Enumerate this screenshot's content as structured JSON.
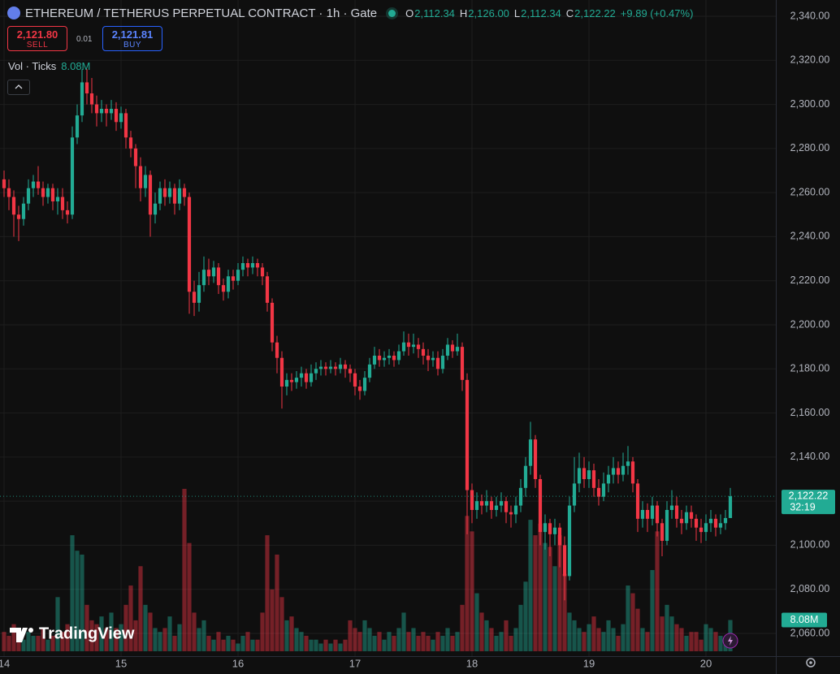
{
  "chart_data": {
    "type": "candlestick",
    "title": "ETHEREUM / TETHERUS PERPETUAL CONTRACT · 1h · Gate",
    "ohlc_legend": [
      {
        "key": "O",
        "text": "2,112.34"
      },
      {
        "key": "H",
        "text": "2,126.00"
      },
      {
        "key": "L",
        "text": "2,112.34"
      },
      {
        "key": "C",
        "text": "2,122.22"
      }
    ],
    "change": "+9.89 (+0.47%)",
    "sell": {
      "price": "2,121.80",
      "label": "SELL"
    },
    "spread": "0.01",
    "buy": {
      "price": "2,121.81",
      "label": "BUY"
    },
    "volume_title": "Vol · Ticks",
    "volume_label": "8.08M",
    "last_price_label": "2,122.22",
    "countdown": "32:19",
    "watermark": "TradingView",
    "up_color": "#22ab94",
    "down_color": "#f23645",
    "grid": true,
    "xlim": [
      -0.8333,
      158.3333
    ],
    "xticks": [
      {
        "value": 0,
        "label": "14"
      },
      {
        "value": 24,
        "label": "15"
      },
      {
        "value": 48,
        "label": "16"
      },
      {
        "value": 72,
        "label": "17"
      },
      {
        "value": 96,
        "label": "18"
      },
      {
        "value": 120,
        "label": "19"
      },
      {
        "value": 144,
        "label": "20"
      }
    ],
    "ylim": [
      2049.68,
      2347.37
    ],
    "yticks": [
      {
        "value": 2060,
        "label": "2,060.00"
      },
      {
        "value": 2080,
        "label": "2,080.00"
      },
      {
        "value": 2100,
        "label": "2,100.00"
      },
      {
        "value": 2120,
        "label": "2,120.00"
      },
      {
        "value": 2140,
        "label": "2,140.00"
      },
      {
        "value": 2160,
        "label": "2,160.00"
      },
      {
        "value": 2180,
        "label": "2,180.00"
      },
      {
        "value": 2200,
        "label": "2,200.00"
      },
      {
        "value": 2220,
        "label": "2,220.00"
      },
      {
        "value": 2240,
        "label": "2,240.00"
      },
      {
        "value": 2260,
        "label": "2,260.00"
      },
      {
        "value": 2280,
        "label": "2,280.00"
      },
      {
        "value": 2300,
        "label": "2,300.00"
      },
      {
        "value": 2320,
        "label": "2,320.00"
      },
      {
        "value": 2340,
        "label": "2,340.00"
      }
    ],
    "volume_lim": [
      0,
      42
    ],
    "open": [
      2266,
      2262,
      2258,
      2250,
      2248,
      2255,
      2262,
      2265,
      2262,
      2258,
      2262,
      2256,
      2258,
      2252,
      2250,
      2285,
      2295,
      2310,
      2305,
      2300,
      2296,
      2298,
      2296,
      2298,
      2292,
      2296,
      2285,
      2280,
      2272,
      2262,
      2268,
      2250,
      2255,
      2262,
      2258,
      2262,
      2255,
      2262,
      2258,
      2215,
      2210,
      2218,
      2225,
      2222,
      2226,
      2218,
      2215,
      2222,
      2220,
      2225,
      2228,
      2226,
      2228,
      2226,
      2222,
      2210,
      2192,
      2185,
      2172,
      2175,
      2174,
      2176,
      2178,
      2174,
      2178,
      2180,
      2181,
      2180,
      2181,
      2180,
      2182,
      2180,
      2178,
      2172,
      2170,
      2176,
      2182,
      2186,
      2184,
      2185,
      2186,
      2184,
      2188,
      2192,
      2190,
      2191,
      2189,
      2186,
      2184,
      2185,
      2180,
      2186,
      2191,
      2188,
      2190,
      2175,
      2125,
      2116,
      2120,
      2118,
      2120,
      2116,
      2118,
      2120,
      2115,
      2114,
      2118,
      2126,
      2136,
      2148,
      2130,
      2106,
      2110,
      2105,
      2108,
      2100,
      2086,
      2118,
      2128,
      2135,
      2130,
      2134,
      2126,
      2122,
      2128,
      2132,
      2135,
      2132,
      2136,
      2138,
      2128,
      2112,
      2116,
      2112,
      2118,
      2110,
      2102,
      2116,
      2118,
      2112,
      2110,
      2115,
      2112,
      2108,
      2106,
      2110,
      2112,
      2108,
      2110,
      2112.34
    ],
    "high": [
      2270,
      2266,
      2261,
      2254,
      2258,
      2266,
      2268,
      2272,
      2265,
      2264,
      2264,
      2262,
      2262,
      2256,
      2290,
      2300,
      2316,
      2316,
      2312,
      2304,
      2302,
      2300,
      2302,
      2301,
      2299,
      2298,
      2288,
      2282,
      2276,
      2272,
      2270,
      2260,
      2265,
      2266,
      2265,
      2264,
      2266,
      2264,
      2260,
      2220,
      2224,
      2231,
      2230,
      2229,
      2228,
      2221,
      2225,
      2225,
      2228,
      2231,
      2230,
      2231,
      2230,
      2228,
      2224,
      2212,
      2195,
      2188,
      2178,
      2178,
      2179,
      2181,
      2180,
      2182,
      2183,
      2184,
      2183,
      2184,
      2183,
      2185,
      2184,
      2182,
      2180,
      2175,
      2179,
      2185,
      2190,
      2189,
      2188,
      2189,
      2188,
      2191,
      2197,
      2196,
      2196,
      2194,
      2192,
      2189,
      2188,
      2188,
      2189,
      2194,
      2193,
      2196,
      2192,
      2178,
      2128,
      2124,
      2123,
      2125,
      2122,
      2122,
      2124,
      2122,
      2118,
      2122,
      2130,
      2140,
      2156,
      2150,
      2132,
      2114,
      2112,
      2112,
      2110,
      2104,
      2122,
      2140,
      2142,
      2140,
      2138,
      2137,
      2130,
      2133,
      2136,
      2140,
      2138,
      2142,
      2145,
      2140,
      2130,
      2120,
      2119,
      2122,
      2120,
      2112,
      2120,
      2125,
      2122,
      2116,
      2118,
      2118,
      2114,
      2112,
      2114,
      2116,
      2114,
      2114,
      2116,
      2126
    ],
    "low": [
      2258,
      2252,
      2240,
      2238,
      2245,
      2252,
      2258,
      2259,
      2254,
      2255,
      2252,
      2250,
      2248,
      2246,
      2248,
      2282,
      2292,
      2300,
      2296,
      2290,
      2292,
      2290,
      2293,
      2288,
      2289,
      2280,
      2276,
      2262,
      2256,
      2258,
      2240,
      2246,
      2252,
      2254,
      2255,
      2250,
      2252,
      2254,
      2205,
      2204,
      2206,
      2215,
      2218,
      2219,
      2214,
      2211,
      2212,
      2216,
      2218,
      2222,
      2222,
      2223,
      2222,
      2218,
      2206,
      2188,
      2178,
      2162,
      2168,
      2170,
      2171,
      2172,
      2171,
      2172,
      2175,
      2177,
      2177,
      2178,
      2177,
      2178,
      2176,
      2174,
      2168,
      2166,
      2168,
      2174,
      2180,
      2181,
      2181,
      2182,
      2181,
      2182,
      2186,
      2186,
      2187,
      2185,
      2182,
      2179,
      2181,
      2177,
      2178,
      2184,
      2185,
      2186,
      2170,
      2105,
      2110,
      2112,
      2114,
      2115,
      2112,
      2113,
      2115,
      2110,
      2108,
      2110,
      2115,
      2122,
      2132,
      2126,
      2100,
      2098,
      2095,
      2100,
      2090,
      2075,
      2084,
      2115,
      2124,
      2126,
      2126,
      2122,
      2118,
      2120,
      2124,
      2128,
      2128,
      2129,
      2132,
      2124,
      2106,
      2108,
      2106,
      2109,
      2104,
      2095,
      2100,
      2112,
      2108,
      2105,
      2107,
      2108,
      2102,
      2101,
      2102,
      2106,
      2104,
      2105,
      2107,
      2112.34
    ],
    "close": [
      2262,
      2258,
      2250,
      2248,
      2255,
      2262,
      2265,
      2262,
      2258,
      2262,
      2256,
      2258,
      2252,
      2250,
      2285,
      2295,
      2310,
      2305,
      2300,
      2296,
      2298,
      2296,
      2298,
      2292,
      2296,
      2285,
      2280,
      2272,
      2262,
      2268,
      2250,
      2255,
      2262,
      2258,
      2262,
      2255,
      2262,
      2258,
      2215,
      2210,
      2218,
      2225,
      2222,
      2226,
      2218,
      2215,
      2222,
      2220,
      2225,
      2228,
      2226,
      2228,
      2226,
      2222,
      2210,
      2192,
      2185,
      2172,
      2175,
      2174,
      2176,
      2178,
      2174,
      2178,
      2180,
      2181,
      2180,
      2181,
      2180,
      2182,
      2180,
      2178,
      2172,
      2170,
      2176,
      2182,
      2186,
      2184,
      2185,
      2186,
      2184,
      2188,
      2192,
      2190,
      2191,
      2189,
      2186,
      2184,
      2185,
      2180,
      2186,
      2191,
      2188,
      2190,
      2175,
      2125,
      2116,
      2120,
      2118,
      2120,
      2116,
      2118,
      2120,
      2115,
      2114,
      2118,
      2126,
      2136,
      2148,
      2130,
      2106,
      2110,
      2105,
      2108,
      2100,
      2086,
      2118,
      2128,
      2135,
      2130,
      2134,
      2126,
      2122,
      2128,
      2132,
      2135,
      2132,
      2136,
      2138,
      2128,
      2112,
      2116,
      2112,
      2118,
      2110,
      2102,
      2116,
      2118,
      2112,
      2110,
      2115,
      2112,
      2108,
      2106,
      2110,
      2112,
      2108,
      2110,
      2112.34,
      2122.22
    ],
    "volume": [
      5,
      4,
      7,
      4,
      3,
      5,
      4,
      4,
      6,
      3,
      4,
      14,
      5,
      7,
      30,
      26,
      25,
      12,
      8,
      7,
      9,
      6,
      10,
      6,
      7,
      12,
      17,
      8,
      22,
      12,
      10,
      6,
      5,
      6,
      9,
      4,
      7,
      42,
      28,
      10,
      6,
      8,
      4,
      3,
      5,
      3,
      4,
      3,
      2,
      4,
      5,
      3,
      3,
      10,
      30,
      16,
      25,
      14,
      8,
      9,
      6,
      5,
      4,
      3,
      3,
      2,
      3,
      2,
      3,
      2,
      3,
      8,
      6,
      5,
      8,
      6,
      4,
      5,
      3,
      5,
      4,
      6,
      10,
      5,
      6,
      4,
      5,
      4,
      3,
      5,
      4,
      6,
      4,
      5,
      12,
      35,
      31,
      15,
      10,
      8,
      6,
      4,
      5,
      8,
      4,
      6,
      12,
      18,
      34,
      30,
      33,
      28,
      27,
      22,
      30,
      20,
      10,
      8,
      6,
      5,
      7,
      9,
      6,
      5,
      8,
      6,
      4,
      7,
      17,
      15,
      11,
      6,
      5,
      21,
      31,
      9,
      12,
      9,
      7,
      6,
      4,
      5,
      5,
      3,
      7,
      6,
      5,
      4,
      3,
      8.08
    ]
  }
}
